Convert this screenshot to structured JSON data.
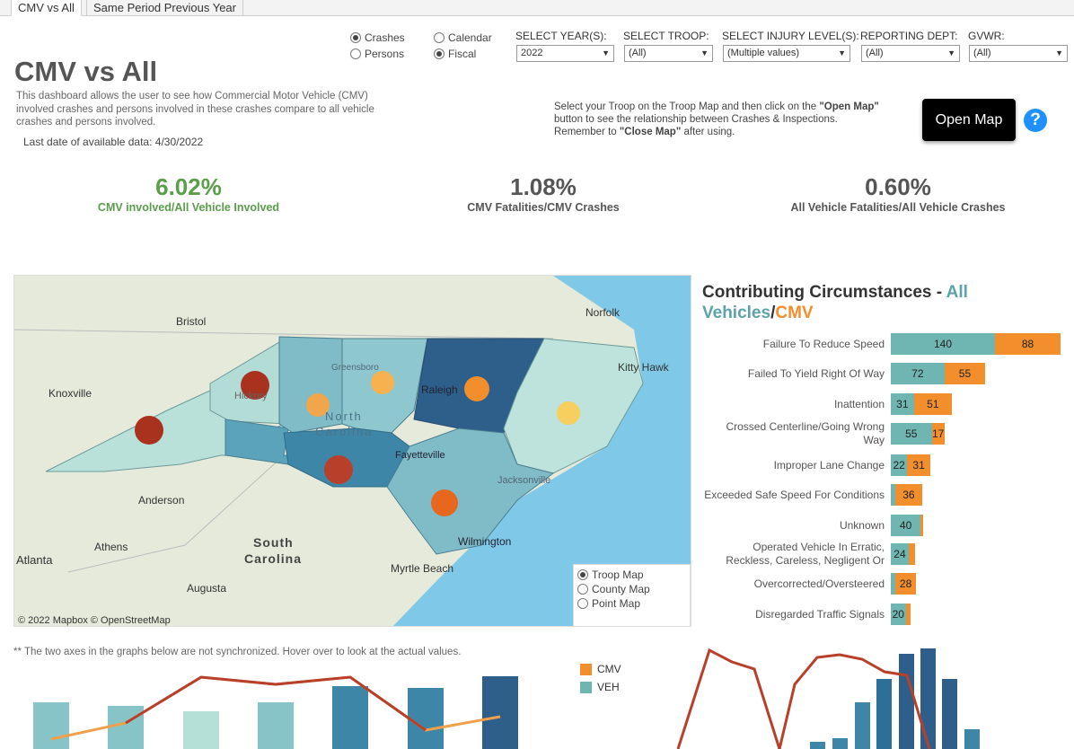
{
  "tabs": [
    "CMV vs All",
    "Same Period Previous Year"
  ],
  "header": {
    "title": "CMV vs All",
    "description": "This dashboard allows the user to see how Commercial Motor Vehicle (CMV) involved crashes and persons involved in these crashes compare to all vehicle crashes and persons involved.",
    "last_date": "Last date of available data: 4/30/2022"
  },
  "toggles": {
    "crashes": "Crashes",
    "persons": "Persons",
    "calendar": "Calendar",
    "fiscal": "Fiscal"
  },
  "filters": [
    {
      "label": "SELECT YEAR(S):",
      "value": "2022"
    },
    {
      "label": "SELECT TROOP:",
      "value": "(All)"
    },
    {
      "label": "SELECT INJURY LEVEL(S):",
      "value": "(Multiple values)"
    },
    {
      "label": "REPORTING DEPT:",
      "value": "(All)"
    },
    {
      "label": "GVWR:",
      "value": "(All)"
    }
  ],
  "map_note": {
    "line1a": "Select your Troop on the Troop Map and then click on the ",
    "line1b": "\"Open Map\"",
    "line2": "button to see the relationship between Crashes & Inspections.",
    "line3a": "Remember to ",
    "line3b": "\"Close Map\"",
    "line3c": " after using."
  },
  "open_map_label": "Open Map",
  "help_label": "?",
  "kpis": [
    {
      "value": "6.02%",
      "label": "CMV involved/All Vehicle Involved",
      "color": "#5a9e4b"
    },
    {
      "value": "1.08%",
      "label": "CMV Fatalities/CMV Crashes",
      "color": "#555555"
    },
    {
      "value": "0.60%",
      "label": "All Vehicle Fatalities/All Vehicle Crashes",
      "color": "#555555"
    }
  ],
  "map": {
    "places": [
      "Bristol",
      "Norfolk",
      "Kitty Hawk",
      "Knoxville",
      "Greensboro",
      "Raleigh",
      "North",
      "Carolina",
      "Fayetteville",
      "Jacksonville",
      "Wilmington",
      "Anderson",
      "Athens",
      "South",
      "Carolina",
      "Atlanta",
      "Augusta",
      "Myrtle Beach",
      "Hickory"
    ],
    "attribution": "© 2022 Mapbox © OpenStreetMap",
    "map_types": [
      "Troop Map",
      "County Map",
      "Point Map"
    ]
  },
  "contributing": {
    "title_a": "Contributing Circumstances - ",
    "title_b": "All Vehicles",
    "title_sep": "/",
    "title_c": "CMV",
    "colors": {
      "all": "#6fb5b1",
      "cmv": "#f28e2b"
    },
    "rows": [
      {
        "label": [
          "Failure To Reduce Speed"
        ],
        "all": 140,
        "cmv": 88
      },
      {
        "label": [
          "Failed To Yield Right Of Way"
        ],
        "all": 72,
        "cmv": 55
      },
      {
        "label": [
          "Inattention"
        ],
        "all": 31,
        "cmv": 51
      },
      {
        "label": [
          "Crossed Centerline/Going Wrong",
          "Way"
        ],
        "all": 55,
        "cmv": 17
      },
      {
        "label": [
          "Improper Lane Change"
        ],
        "all": 22,
        "cmv": 31
      },
      {
        "label": [
          "Exceeded Safe Speed For Conditions"
        ],
        "all": 6,
        "cmv": 36
      },
      {
        "label": [
          "Unknown"
        ],
        "all": 40,
        "cmv": 4
      },
      {
        "label": [
          "Operated Vehicle In Erratic,",
          "Reckless,  Careless, Negligent Or"
        ],
        "all": 24,
        "cmv": 8
      },
      {
        "label": [
          "Overcorrected/Oversteered"
        ],
        "all": 6,
        "cmv": 28
      },
      {
        "label": [
          "Disregarded Traffic Signals"
        ],
        "all": 20,
        "cmv": 6
      }
    ]
  },
  "bottom": {
    "axis_note": "** The two axes in the graphs below are not synchronized. Hover over to look at the actual values.",
    "legend": [
      {
        "name": "CMV",
        "color": "#f28e2b"
      },
      {
        "name": "VEH",
        "color": "#6fb5b1"
      }
    ]
  }
}
